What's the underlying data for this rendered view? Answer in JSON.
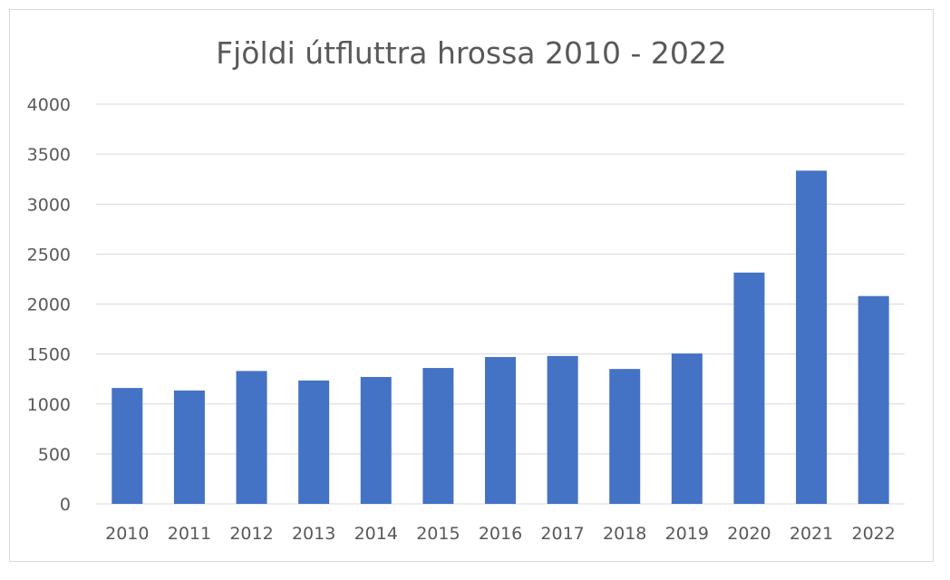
{
  "chart_data": {
    "type": "bar",
    "title": "Fjöldi útfluttra hrossa 2010 - 2022",
    "xlabel": "",
    "ylabel": "",
    "categories": [
      "2010",
      "2011",
      "2012",
      "2013",
      "2014",
      "2015",
      "2016",
      "2017",
      "2018",
      "2019",
      "2020",
      "2021",
      "2022"
    ],
    "values": [
      1160,
      1135,
      1330,
      1235,
      1270,
      1360,
      1470,
      1480,
      1350,
      1505,
      2315,
      3335,
      2080
    ],
    "ylim": [
      0,
      4000
    ],
    "yticks": [
      "0",
      "500",
      "1000",
      "1500",
      "2000",
      "2500",
      "3000",
      "3500",
      "4000"
    ],
    "grid": true,
    "legend": "none",
    "bar_color": "#4472c4"
  }
}
